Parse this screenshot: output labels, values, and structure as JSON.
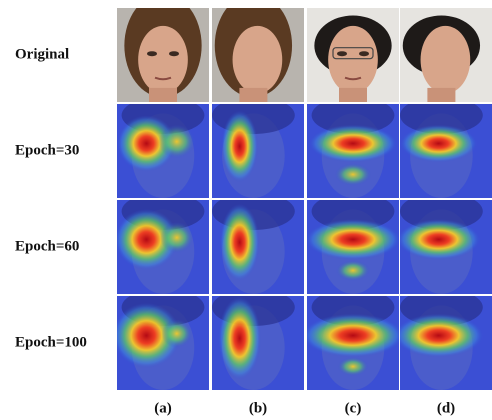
{
  "row_labels": [
    "Original",
    "Epoch=30",
    "Epoch=60",
    "Epoch=100"
  ],
  "column_labels": [
    "(a)",
    "(b)",
    "(c)",
    "(d)"
  ]
}
